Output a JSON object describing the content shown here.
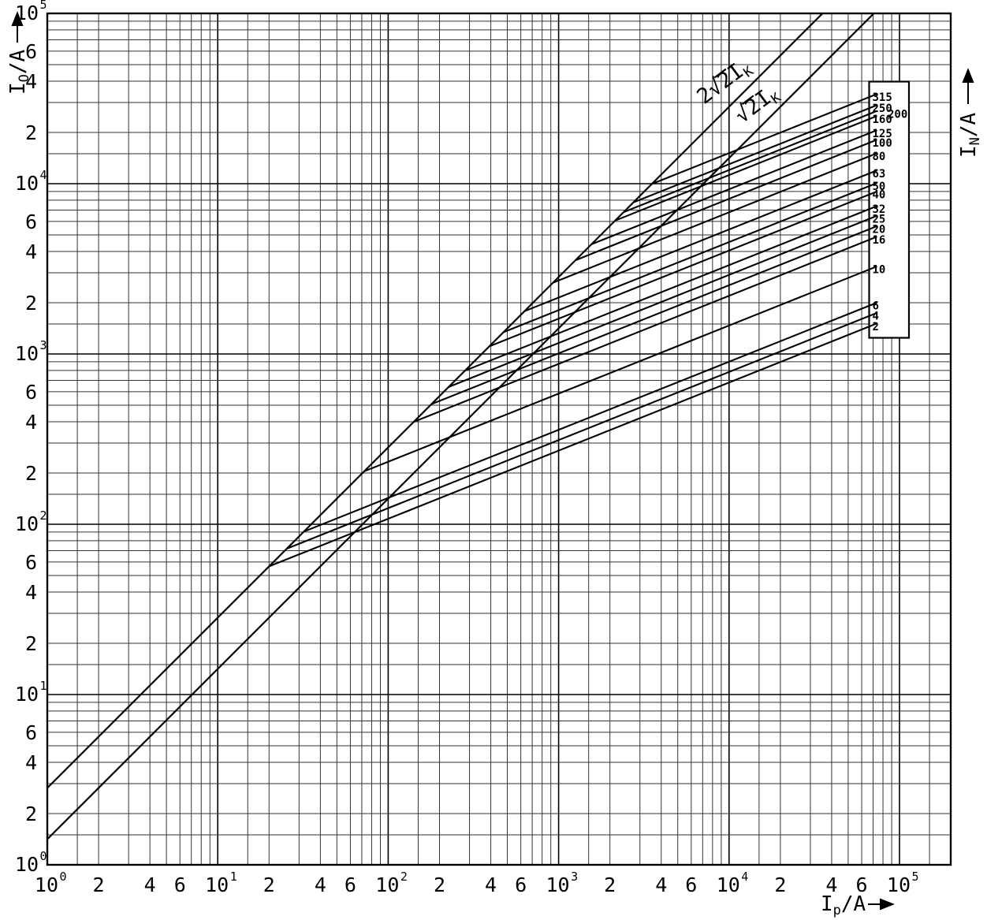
{
  "chart_data": {
    "type": "line",
    "scale": "log-log",
    "grid": "on",
    "x_axis": {
      "symbol": "I",
      "subscript": "p",
      "unit": "/A",
      "min": 1,
      "max": 200000,
      "decade_exponents": [
        0,
        1,
        2,
        3,
        4,
        5
      ],
      "labeled_minors": [
        2,
        4,
        6
      ]
    },
    "y_axis": {
      "symbol": "I",
      "subscript": "O",
      "unit": "/A",
      "min": 1,
      "max": 100000,
      "decade_exponents": [
        0,
        1,
        2,
        3,
        4,
        5
      ],
      "labeled_minors": [
        2,
        4,
        6
      ]
    },
    "right_axis_label": {
      "symbol": "I",
      "subscript": "N",
      "unit": "/A"
    },
    "minor_grid_steps": [
      1.5,
      2,
      3,
      4,
      5,
      6,
      7,
      8,
      9
    ],
    "boundary_lines": [
      {
        "id": "asym-peak",
        "factor": 2.828,
        "label": {
          "prefix": "2",
          "radical": "√",
          "radicand": "2",
          "symbol": "I",
          "subscript": "K"
        }
      },
      {
        "id": "sym-peak",
        "factor": 1.414,
        "label": {
          "prefix": "",
          "radical": "√",
          "radicand": "2",
          "symbol": "I",
          "subscript": "K"
        }
      }
    ],
    "fuse_curves": {
      "slope_loglog": 0.4,
      "end_prospective_current_A": 66700,
      "series": [
        {
          "rating_A": "315",
          "cutoff_peak_A": 32300
        },
        {
          "rating_A": "250",
          "cutoff_peak_A": 27800
        },
        {
          "rating_A": "200",
          "cutoff_peak_A": 25700,
          "label_offset": true
        },
        {
          "rating_A": "160",
          "cutoff_peak_A": 24000
        },
        {
          "rating_A": "125",
          "cutoff_peak_A": 19800
        },
        {
          "rating_A": "100",
          "cutoff_peak_A": 17400
        },
        {
          "rating_A": "80",
          "cutoff_peak_A": 14500
        },
        {
          "rating_A": "63",
          "cutoff_peak_A": 11500
        },
        {
          "rating_A": "50",
          "cutoff_peak_A": 9700
        },
        {
          "rating_A": "40",
          "cutoff_peak_A": 8650
        },
        {
          "rating_A": "32",
          "cutoff_peak_A": 7100
        },
        {
          "rating_A": "25",
          "cutoff_peak_A": 6220
        },
        {
          "rating_A": "20",
          "cutoff_peak_A": 5410
        },
        {
          "rating_A": "16",
          "cutoff_peak_A": 4690
        },
        {
          "rating_A": "10",
          "cutoff_peak_A": 3140
        },
        {
          "rating_A": "6",
          "cutoff_peak_A": 1925
        },
        {
          "rating_A": "4",
          "cutoff_peak_A": 1675
        },
        {
          "rating_A": "2",
          "cutoff_peak_A": 1452
        }
      ]
    },
    "colors": {
      "line": "#000000",
      "grid_minor": "#333333",
      "grid_major": "#000000",
      "background": "#ffffff"
    }
  }
}
